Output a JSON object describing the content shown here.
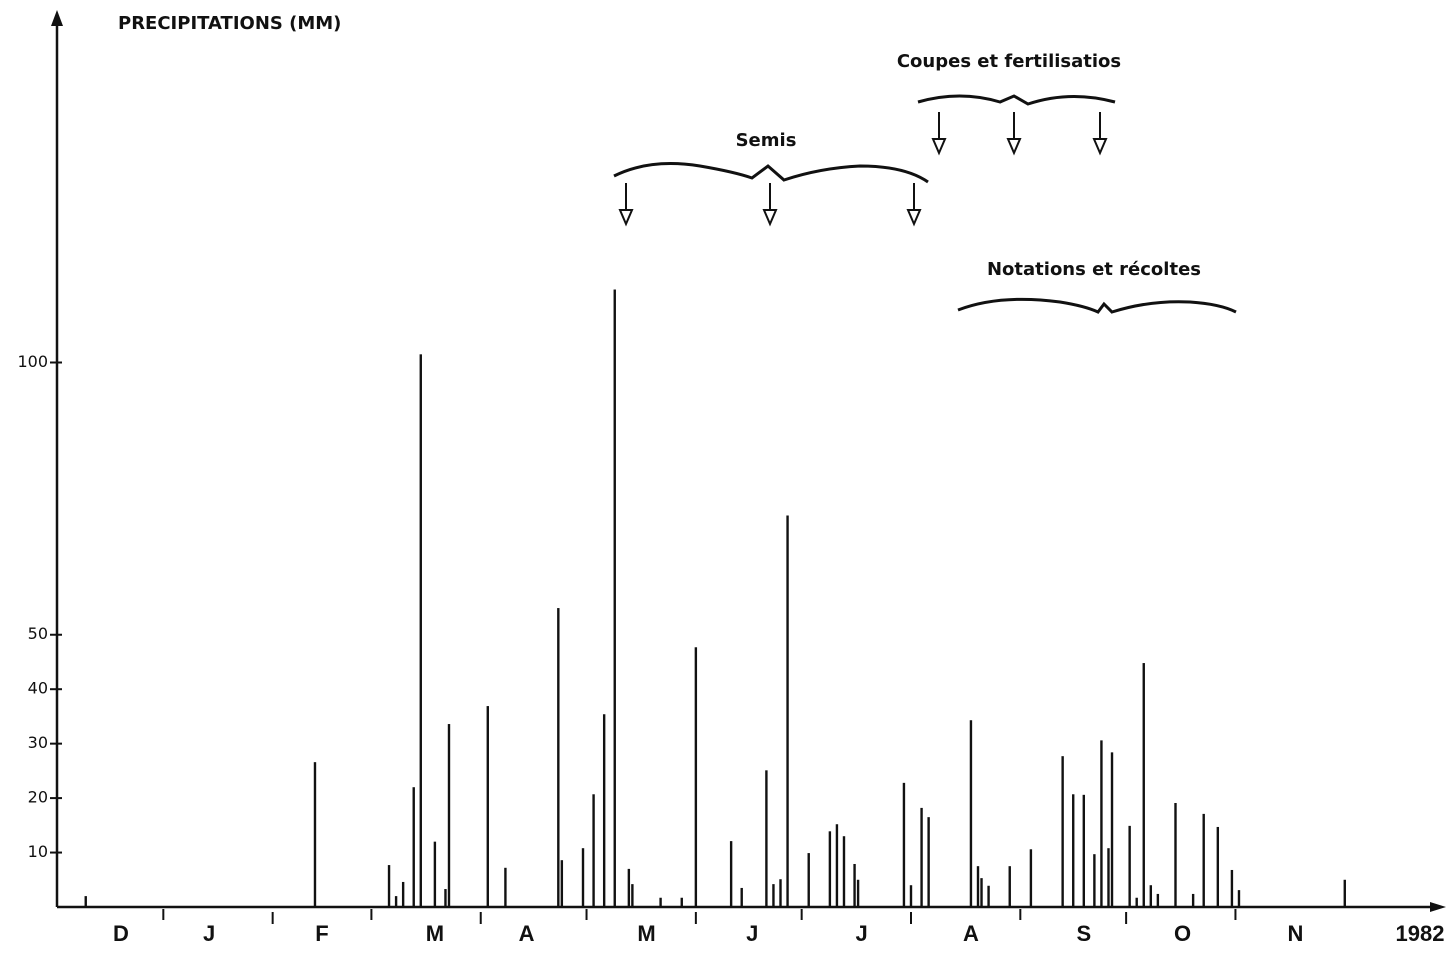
{
  "chart_data": {
    "type": "bar",
    "title": "PRECIPITATIONS (MM)",
    "annotations": [
      "Semis",
      "Coupes et fertilisatios",
      "Notations et récoltes"
    ],
    "year_label": "1982",
    "x": [
      9,
      74,
      95,
      97,
      99,
      102,
      104,
      108,
      111,
      112,
      123,
      128,
      143,
      144,
      150,
      153,
      156,
      159,
      163,
      164,
      172,
      178,
      182,
      192,
      195,
      202,
      204,
      206,
      208,
      214,
      220,
      222,
      224,
      227,
      228,
      241,
      243,
      246,
      248,
      260,
      262,
      263,
      265,
      271,
      277,
      286,
      289,
      292,
      295,
      297,
      299,
      300,
      305,
      307,
      309,
      311,
      313,
      318,
      323,
      326,
      330,
      334,
      336,
      366
    ],
    "values": [
      2,
      26.6,
      7.7,
      2,
      4.6,
      22,
      101.5,
      12,
      3.3,
      33.6,
      36.9,
      7.2,
      54.9,
      8.6,
      10.8,
      20.7,
      35.4,
      113.4,
      7,
      4.2,
      1.7,
      1.7,
      47.7,
      12.1,
      3.5,
      25.1,
      4.2,
      5.1,
      71.9,
      9.9,
      13.9,
      15.2,
      13,
      7.9,
      5,
      22.8,
      4,
      18.2,
      16.5,
      34.3,
      7.5,
      5.3,
      3.9,
      7.5,
      10.6,
      27.7,
      20.7,
      20.6,
      9.7,
      30.6,
      10.8,
      28.4,
      14.9,
      1.7,
      44.8,
      4,
      2.4,
      19.1,
      2.4,
      17.1,
      14.7,
      6.8,
      3.1,
      5
    ],
    "color": "#111111",
    "xlim": [
      0,
      393
    ],
    "xticks": [
      {
        "value": 19,
        "label": "D"
      },
      {
        "value": 44,
        "label": "J"
      },
      {
        "value": 76,
        "label": "F"
      },
      {
        "value": 108,
        "label": "M"
      },
      {
        "value": 134,
        "label": "A"
      },
      {
        "value": 168,
        "label": "M"
      },
      {
        "value": 198,
        "label": "J"
      },
      {
        "value": 229,
        "label": "J"
      },
      {
        "value": 260,
        "label": "A"
      },
      {
        "value": 292,
        "label": "S"
      },
      {
        "value": 320,
        "label": "O"
      },
      {
        "value": 352,
        "label": "N"
      }
    ],
    "minor_xticks": [
      31,
      62,
      90,
      121,
      151,
      182,
      212,
      243,
      274,
      304,
      335
    ],
    "ylim": [
      0,
      164
    ],
    "yticks": [
      10,
      20,
      30,
      40,
      50,
      100
    ],
    "grid": false
  }
}
